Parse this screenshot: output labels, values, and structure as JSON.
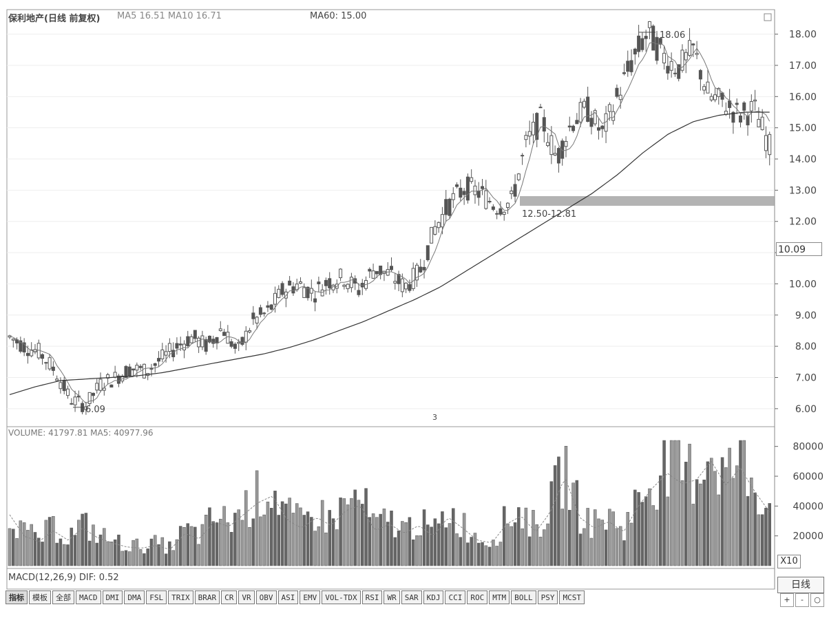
{
  "header": {
    "title": "保利地产(日线 前复权)",
    "ma_labels": "MA5 16.51  MA10 16.71",
    "ma60_label": "MA60: 15.00"
  },
  "volume_header": "VOLUME: 41797.81  MA5: 40977.96",
  "macd_header": "MACD(12,26,9) DIF: 0.52",
  "annotations": {
    "low": "6.09",
    "high": "18.06",
    "gap": "12.50-12.81",
    "current_price_box": "10.09",
    "volume_unit": "X10",
    "bottom_marker": "3"
  },
  "price_axis": {
    "ticks": [
      6,
      7,
      8,
      9,
      10,
      11,
      12,
      13,
      14,
      15,
      16,
      17,
      18
    ],
    "tick_labels": [
      "6.00",
      "7.00",
      "8.00",
      "9.00",
      "10.00",
      "",
      "12.00",
      "13.00",
      "14.00",
      "15.00",
      "16.00",
      "17.00",
      "18.00"
    ],
    "range": [
      5.6,
      18.3
    ]
  },
  "volume_axis": {
    "ticks": [
      20000,
      40000,
      60000,
      80000
    ],
    "tick_labels": [
      "20000",
      "40000",
      "60000",
      "80000"
    ],
    "range": [
      0,
      84000
    ]
  },
  "tabs": [
    "指标",
    "模板",
    "全部",
    "MACD",
    "DMI",
    "DMA",
    "FSL",
    "TRIX",
    "BRAR",
    "CR",
    "VR",
    "OBV",
    "ASI",
    "EMV",
    "VOL-TDX",
    "RSI",
    "WR",
    "SAR",
    "KDJ",
    "CCI",
    "ROC",
    "MTM",
    "BOLL",
    "PSY",
    "MCST"
  ],
  "period_label": "日线",
  "controls": [
    "+",
    "-",
    "○"
  ],
  "colors": {
    "candle": "#555555",
    "ma60": "#333333",
    "ma_short": "#777777",
    "gap_band": "#9a9a9a",
    "volume_bar": "#666666"
  },
  "chart_data": [
    {
      "type": "candlestick",
      "title": "保利地产(日线 前复权)",
      "series": [
        {
          "name": "MA60",
          "style": "line",
          "values_sampled": [
            6.45,
            6.7,
            6.9,
            6.95,
            7.0,
            7.05,
            7.15,
            7.3,
            7.45,
            7.6,
            7.75,
            7.95,
            8.2,
            8.5,
            8.8,
            9.15,
            9.5,
            9.9,
            10.4,
            10.9,
            11.4,
            11.9,
            12.4,
            12.9,
            13.5,
            14.2,
            14.8,
            15.2,
            15.4,
            15.5,
            15.5
          ]
        },
        {
          "name": "price_path",
          "style": "candles",
          "values_sampled": [
            8.3,
            8.0,
            7.8,
            7.2,
            6.3,
            6.1,
            6.8,
            7.0,
            7.3,
            7.2,
            7.6,
            8.0,
            8.3,
            8.0,
            8.6,
            7.8,
            8.8,
            9.1,
            9.8,
            10.0,
            9.7,
            10.1,
            10.2,
            9.8,
            10.5,
            10.3,
            9.9,
            10.4,
            11.8,
            12.6,
            13.1,
            12.9,
            12.5,
            12.6,
            14.5,
            15.3,
            14.0,
            15.2,
            15.6,
            14.8,
            16.0,
            17.2,
            18.06,
            17.3,
            16.9,
            17.5,
            16.0,
            15.8,
            15.4,
            15.6,
            14.4
          ]
        }
      ],
      "ylim": [
        5.6,
        18.3
      ],
      "low": 6.09,
      "high": 18.06,
      "gap_zone": [
        12.5,
        12.81
      ]
    },
    {
      "type": "bar",
      "title": "VOLUME",
      "unit": "X10",
      "ylim": [
        0,
        84000
      ],
      "values_sampled": [
        38000,
        22000,
        18000,
        26000,
        19000,
        28000,
        21000,
        17000,
        14000,
        13000,
        15000,
        12000,
        24000,
        20000,
        33000,
        29000,
        38000,
        47000,
        52000,
        34000,
        28000,
        36000,
        30000,
        41000,
        45000,
        26000,
        31000,
        24000,
        30000,
        22000,
        36000,
        28000,
        19000,
        17000,
        31000,
        37000,
        25000,
        40000,
        66000,
        36000,
        28000,
        33000,
        25000,
        44000,
        58000,
        69000,
        61000,
        64000,
        78000,
        60000,
        73000,
        55000,
        40000
      ]
    }
  ]
}
